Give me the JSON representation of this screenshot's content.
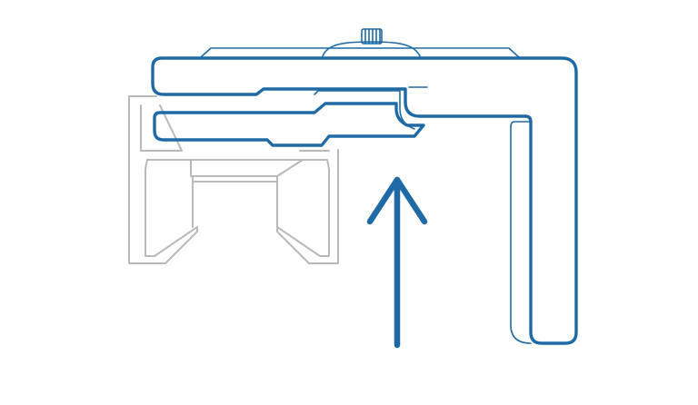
{
  "colors": {
    "background": "#ffffff",
    "clip": "#1f6aa5",
    "track": "#b9b9b9"
  },
  "icons": {
    "track": "curtain-track-profile-icon",
    "clip": "mounting-clip-icon",
    "direction": "up-arrow-icon"
  }
}
